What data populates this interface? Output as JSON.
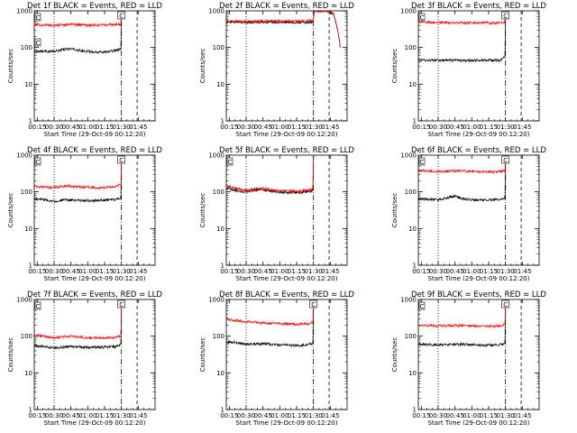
{
  "window": {
    "title": ""
  },
  "shared": {
    "xlabel": "Start Time (29-Oct-09 00:12:20)",
    "ylabel": "Counts/sec",
    "x_ticks": [
      "00:15",
      "00:30",
      "00:45",
      "01:00",
      "01:15",
      "01:30",
      "01:45"
    ],
    "x_tick_minutes": [
      15,
      30,
      45,
      60,
      75,
      90,
      105
    ],
    "xlim_minutes": [
      12.33,
      120
    ],
    "y_ticks": [
      "1",
      "10",
      "100",
      "1000"
    ],
    "y_tick_values": [
      1,
      10,
      100,
      1000
    ],
    "ylim": [
      1,
      1000
    ],
    "y_scale": "log",
    "colors": {
      "events": "#000000",
      "lld": "#ff0000"
    },
    "markers": {
      "dotted_minute": 30,
      "dashdot_minute": 90,
      "dashed_minute": 104
    }
  },
  "chart_data": [
    {
      "type": "line",
      "title": "Det 1f BLACK = Events, RED = LLD",
      "flag_labels": [
        "C",
        "C"
      ],
      "gap_label": "C",
      "series": [
        {
          "color": "#000000",
          "end_minute": 89.5,
          "values": [
            [
              12.5,
              80
            ],
            [
              20,
              80
            ],
            [
              30,
              78
            ],
            [
              40,
              90
            ],
            [
              45,
              92
            ],
            [
              55,
              80
            ],
            [
              70,
              75
            ],
            [
              80,
              78
            ],
            [
              89.5,
              88
            ]
          ]
        },
        {
          "color": "#ff0000",
          "end_minute": 89.5,
          "values": [
            [
              12.5,
              420
            ],
            [
              20,
              415
            ],
            [
              30,
              400
            ],
            [
              45,
              430
            ],
            [
              60,
              410
            ],
            [
              75,
              415
            ],
            [
              89.5,
              430
            ]
          ]
        }
      ]
    },
    {
      "type": "line",
      "title": "Det 2f BLACK = Events, RED = LLD",
      "flag_labels": [],
      "gap_label": "",
      "series": [
        {
          "color": "#000000",
          "end_minute": 120,
          "values": [
            [
              12.5,
              490
            ],
            [
              30,
              490
            ],
            [
              50,
              500
            ],
            [
              70,
              480
            ],
            [
              89.5,
              490
            ],
            [
              91,
              1000
            ],
            [
              95,
              1000
            ],
            [
              100,
              1000
            ],
            [
              104,
              1000
            ],
            [
              108,
              800
            ],
            [
              110,
              500
            ],
            [
              112,
              250
            ],
            [
              114,
              100
            ]
          ]
        },
        {
          "color": "#ff0000",
          "end_minute": 120,
          "values": [
            [
              12.5,
              520
            ],
            [
              30,
              515
            ],
            [
              50,
              530
            ],
            [
              70,
              520
            ],
            [
              80,
              540
            ],
            [
              89.5,
              540
            ],
            [
              91,
              1000
            ],
            [
              95,
              1000
            ],
            [
              100,
              1000
            ],
            [
              104,
              1000
            ],
            [
              108,
              800
            ],
            [
              110,
              500
            ],
            [
              112,
              250
            ],
            [
              114,
              100
            ]
          ]
        }
      ]
    },
    {
      "type": "line",
      "title": "Det 3f BLACK = Events, RED = LLD",
      "flag_labels": [
        "C"
      ],
      "gap_label": "C",
      "series": [
        {
          "color": "#000000",
          "end_minute": 89.5,
          "values": [
            [
              12.5,
              45
            ],
            [
              30,
              45
            ],
            [
              50,
              44
            ],
            [
              70,
              45
            ],
            [
              85,
              45
            ],
            [
              89.5,
              55
            ]
          ]
        },
        {
          "color": "#ff0000",
          "end_minute": 89.5,
          "values": [
            [
              12.5,
              500
            ],
            [
              30,
              480
            ],
            [
              50,
              470
            ],
            [
              70,
              475
            ],
            [
              85,
              460
            ],
            [
              89.5,
              480
            ]
          ]
        }
      ]
    },
    {
      "type": "line",
      "title": "Det 4f BLACK = Events, RED = LLD",
      "flag_labels": [
        "C"
      ],
      "gap_label": "C",
      "series": [
        {
          "color": "#000000",
          "end_minute": 89.5,
          "values": [
            [
              12.5,
              65
            ],
            [
              20,
              62
            ],
            [
              30,
              55
            ],
            [
              40,
              60
            ],
            [
              55,
              58
            ],
            [
              70,
              58
            ],
            [
              85,
              62
            ],
            [
              89.5,
              70
            ]
          ]
        },
        {
          "color": "#ff0000",
          "end_minute": 89.5,
          "values": [
            [
              12.5,
              140
            ],
            [
              20,
              135
            ],
            [
              30,
              130
            ],
            [
              40,
              145
            ],
            [
              55,
              135
            ],
            [
              70,
              130
            ],
            [
              85,
              140
            ],
            [
              89.5,
              160
            ]
          ]
        }
      ]
    },
    {
      "type": "line",
      "title": "Det 5f BLACK = Events, RED = LLD",
      "flag_labels": [
        "C"
      ],
      "gap_label": "",
      "series": [
        {
          "color": "#000000",
          "end_minute": 89.5,
          "values": [
            [
              12.5,
              130
            ],
            [
              20,
              110
            ],
            [
              30,
              100
            ],
            [
              45,
              115
            ],
            [
              55,
              100
            ],
            [
              65,
              95
            ],
            [
              75,
              95
            ],
            [
              85,
              100
            ],
            [
              89.5,
              110
            ]
          ]
        },
        {
          "color": "#ff0000",
          "end_minute": 89.5,
          "values": [
            [
              12.5,
              150
            ],
            [
              20,
              125
            ],
            [
              30,
              110
            ],
            [
              45,
              125
            ],
            [
              55,
              110
            ],
            [
              65,
              105
            ],
            [
              75,
              105
            ],
            [
              85,
              110
            ],
            [
              89.5,
              120
            ]
          ]
        }
      ]
    },
    {
      "type": "line",
      "title": "Det 6f BLACK = Events, RED = LLD",
      "flag_labels": [
        "C"
      ],
      "gap_label": "C",
      "series": [
        {
          "color": "#000000",
          "end_minute": 89.5,
          "values": [
            [
              12.5,
              65
            ],
            [
              20,
              63
            ],
            [
              30,
              60
            ],
            [
              40,
              72
            ],
            [
              45,
              75
            ],
            [
              55,
              62
            ],
            [
              70,
              60
            ],
            [
              85,
              62
            ],
            [
              89.5,
              70
            ]
          ]
        },
        {
          "color": "#ff0000",
          "end_minute": 89.5,
          "values": [
            [
              12.5,
              380
            ],
            [
              30,
              360
            ],
            [
              50,
              370
            ],
            [
              70,
              350
            ],
            [
              85,
              360
            ],
            [
              89.5,
              380
            ]
          ]
        }
      ]
    },
    {
      "type": "line",
      "title": "Det 7f BLACK = Events, RED = LLD",
      "flag_labels": [
        "C"
      ],
      "gap_label": "C",
      "series": [
        {
          "color": "#000000",
          "end_minute": 89.5,
          "values": [
            [
              12.5,
              55
            ],
            [
              20,
              52
            ],
            [
              30,
              48
            ],
            [
              45,
              52
            ],
            [
              60,
              50
            ],
            [
              75,
              50
            ],
            [
              85,
              52
            ],
            [
              89.5,
              60
            ]
          ]
        },
        {
          "color": "#ff0000",
          "end_minute": 89.5,
          "values": [
            [
              12.5,
              110
            ],
            [
              20,
              100
            ],
            [
              30,
              90
            ],
            [
              45,
              100
            ],
            [
              60,
              90
            ],
            [
              75,
              90
            ],
            [
              85,
              92
            ],
            [
              89.5,
              100
            ]
          ]
        }
      ]
    },
    {
      "type": "line",
      "title": "Det 8f BLACK = Events, RED = LLD",
      "flag_labels": [],
      "gap_label": "C",
      "series": [
        {
          "color": "#000000",
          "end_minute": 89.5,
          "values": [
            [
              12.5,
              70
            ],
            [
              20,
              68
            ],
            [
              30,
              60
            ],
            [
              45,
              62
            ],
            [
              60,
              58
            ],
            [
              75,
              55
            ],
            [
              85,
              58
            ],
            [
              89.5,
              65
            ]
          ]
        },
        {
          "color": "#ff0000",
          "end_minute": 89.5,
          "values": [
            [
              12.5,
              300
            ],
            [
              20,
              270
            ],
            [
              30,
              250
            ],
            [
              45,
              230
            ],
            [
              60,
              220
            ],
            [
              75,
              210
            ],
            [
              85,
              215
            ],
            [
              89.5,
              240
            ]
          ]
        }
      ]
    },
    {
      "type": "line",
      "title": "Det 9f BLACK = Events, RED = LLD",
      "flag_labels": [
        "C"
      ],
      "gap_label": "C",
      "series": [
        {
          "color": "#000000",
          "end_minute": 89.5,
          "values": [
            [
              12.5,
              60
            ],
            [
              30,
              58
            ],
            [
              50,
              60
            ],
            [
              70,
              57
            ],
            [
              85,
              58
            ],
            [
              89.5,
              65
            ]
          ]
        },
        {
          "color": "#ff0000",
          "end_minute": 89.5,
          "values": [
            [
              12.5,
              200
            ],
            [
              30,
              190
            ],
            [
              50,
              195
            ],
            [
              70,
              185
            ],
            [
              85,
              190
            ],
            [
              89.5,
              210
            ]
          ]
        }
      ]
    }
  ]
}
